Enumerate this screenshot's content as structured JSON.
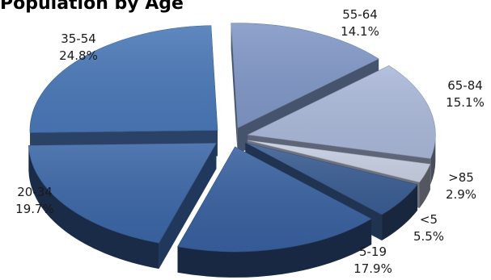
{
  "chart_data": {
    "type": "pie",
    "title": "Population by Age",
    "series": [
      {
        "values": [
          {
            "category": "55-64",
            "percent": 14.1,
            "label": "14.1%",
            "color": "#8097c6"
          },
          {
            "category": "65-84",
            "percent": 15.1,
            "label": "15.1%",
            "color": "#aab8d9"
          },
          {
            "category": ">85",
            "percent": 2.9,
            "label": "2.9%",
            "color": "#c7d0e3"
          },
          {
            "category": "<5",
            "percent": 5.5,
            "label": "5.5%",
            "color": "#3a5d93"
          },
          {
            "category": "5-19",
            "percent": 17.9,
            "label": "17.9%",
            "color": "#38609f"
          },
          {
            "category": "20-34",
            "percent": 19.7,
            "label": "19.7%",
            "color": "#3b66a6"
          },
          {
            "category": "35-54",
            "percent": 24.8,
            "label": "24.8%",
            "color": "#4a78b7"
          }
        ]
      }
    ],
    "start_angle_deg": -92,
    "exploded": true,
    "three_d": true,
    "legend": "none"
  }
}
